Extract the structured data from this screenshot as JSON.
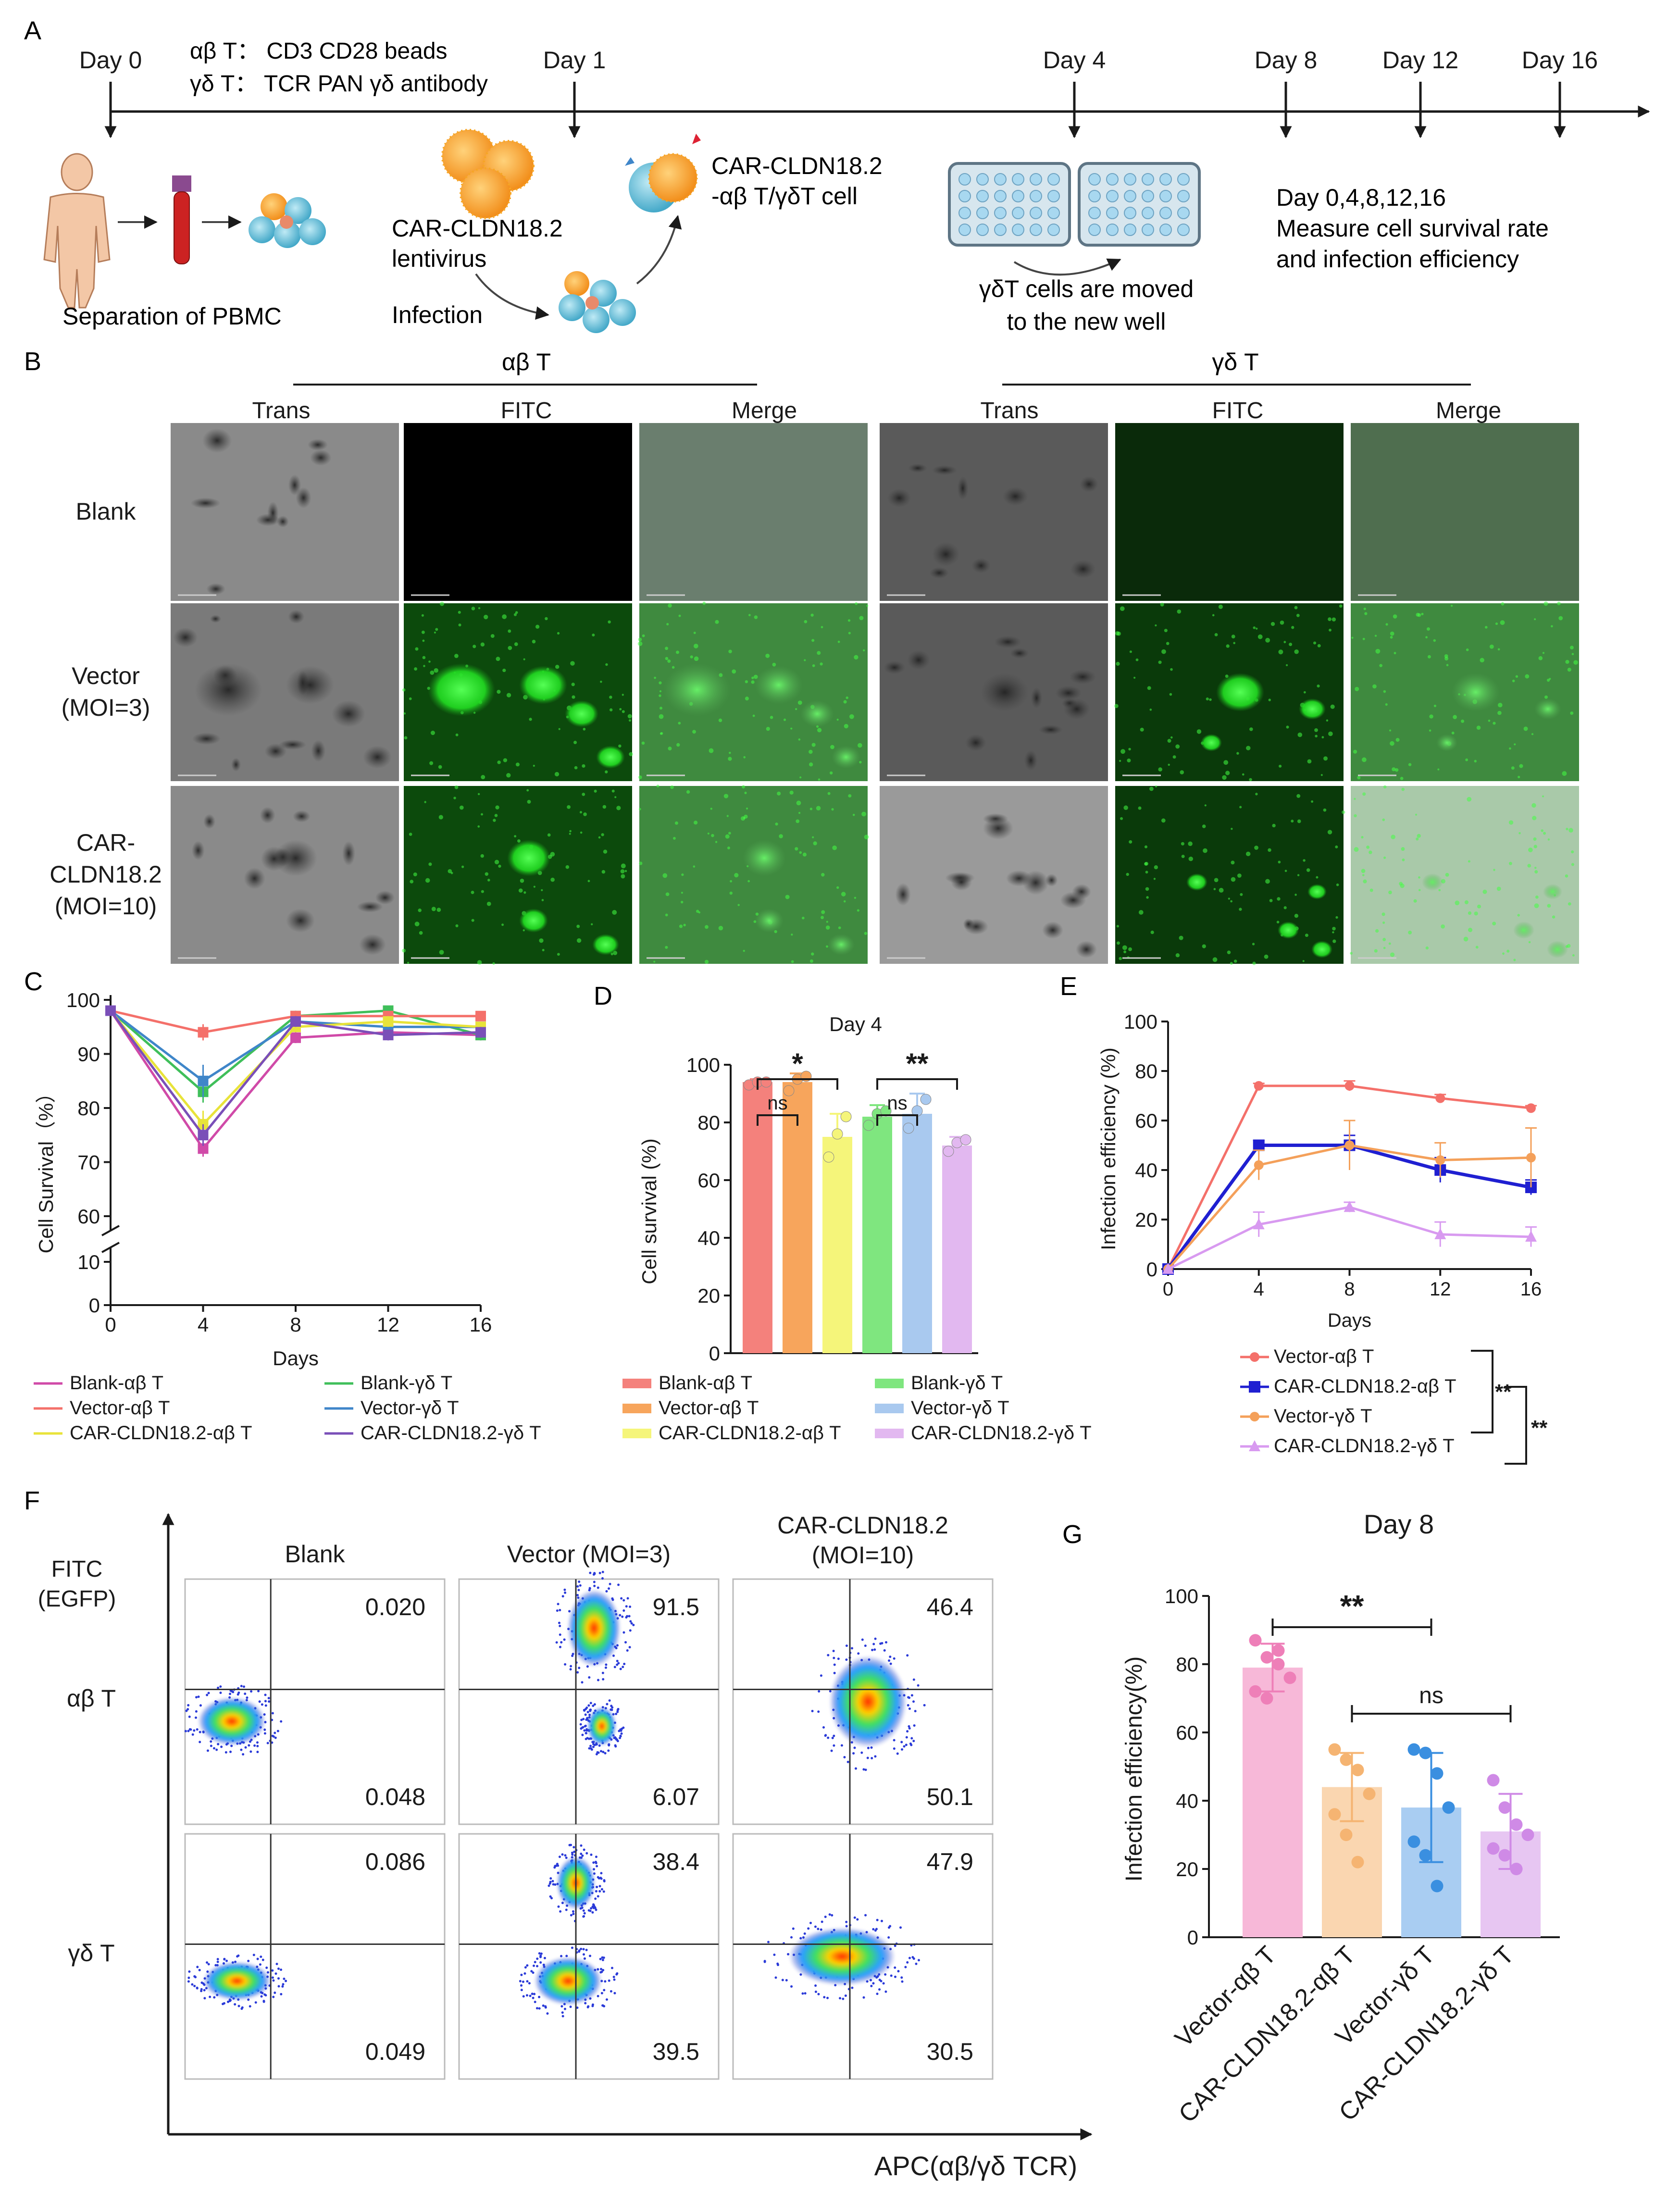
{
  "panel_labels": {
    "a": "A",
    "b": "B",
    "c": "C",
    "d": "D",
    "e": "E",
    "f": "F",
    "g": "G"
  },
  "timeline": {
    "days": [
      {
        "label": "Day 0",
        "x": 230
      },
      {
        "label": "Day 1",
        "x": 1195
      },
      {
        "label": "Day 4",
        "x": 2235
      },
      {
        "label": "Day 8",
        "x": 2675
      },
      {
        "label": "Day 12",
        "x": 2955
      },
      {
        "label": "Day 16",
        "x": 3245
      }
    ],
    "stim_ab": "αβ T：  CD3 CD28 beads",
    "stim_gd": "γδ T：  TCR PAN γδ antibody",
    "pbmc_label": "Separation of PBMC",
    "lentivirus_line1": "CAR-CLDN18.2",
    "lentivirus_line2": "lentivirus",
    "infection_label": "Infection",
    "car_cell_line1": "CAR-CLDN18.2",
    "car_cell_line2": "-αβ T/γδT cell",
    "move_line1": "γδT cells are moved",
    "move_line2": "to the new well",
    "measure_line1": "Day 0,4,8,12,16",
    "measure_line2": "Measure cell survival rate",
    "measure_line3": "and infection efficiency"
  },
  "microscopy": {
    "group_ab": "αβ T",
    "group_gd": "γδ T",
    "columns": [
      "Trans",
      "FITC",
      "Merge",
      "Trans",
      "FITC",
      "Merge"
    ],
    "rows": [
      {
        "label_lines": [
          "Blank"
        ]
      },
      {
        "label_lines": [
          "Vector",
          "(MOI=3)"
        ]
      },
      {
        "label_lines": [
          "CAR-",
          "CLDN18.2",
          "(MOI=10)"
        ]
      }
    ]
  },
  "legend_cd": [
    {
      "name": "Blank-αβ T",
      "color": "#d04aa8"
    },
    {
      "name": "Blank-γδ T",
      "color": "#3fbf5a"
    },
    {
      "name": "Vector-αβ T",
      "color": "#f4706a"
    },
    {
      "name": "Vector-γδ T",
      "color": "#3f86c9"
    },
    {
      "name": "CAR-CLDN18.2-αβ T",
      "color": "#e8e33a"
    },
    {
      "name": "CAR-CLDN18.2-γδ T",
      "color": "#7a4fb8"
    }
  ],
  "legend_d": [
    {
      "name": "Blank-αβ T",
      "color": "#f4817c"
    },
    {
      "name": "Blank-γδ T",
      "color": "#7fe67f"
    },
    {
      "name": "Vector-αβ T",
      "color": "#f7a55c"
    },
    {
      "name": "Vector-γδ T",
      "color": "#a9c9ef"
    },
    {
      "name": "CAR-CLDN18.2-αβ T",
      "color": "#f5f57a"
    },
    {
      "name": "CAR-CLDN18.2-γδ T",
      "color": "#e2b8f0"
    }
  ],
  "chart_data": [
    {
      "id": "C",
      "type": "line",
      "xlabel": "Days",
      "ylabel": "Cell Survival（%）",
      "x": [
        0,
        4,
        8,
        12,
        16
      ],
      "xticks": [
        "0",
        "4",
        "8",
        "12",
        "16"
      ],
      "yticks_upper": [
        "60",
        "70",
        "80",
        "90",
        "100"
      ],
      "yticks_lower": [
        "0",
        "10"
      ],
      "axis_break": true,
      "series": [
        {
          "name": "Blank-αβ T",
          "color": "#d04aa8",
          "values": [
            98,
            72.5,
            93,
            94,
            93.5
          ],
          "err": [
            0.5,
            1.5,
            1,
            0.8,
            0.8
          ]
        },
        {
          "name": "Blank-γδ T",
          "color": "#3fbf5a",
          "values": [
            98,
            83,
            97,
            98,
            93.5
          ],
          "err": [
            0.5,
            2,
            1,
            0.8,
            1
          ]
        },
        {
          "name": "Vector-αβ T",
          "color": "#f4706a",
          "values": [
            98,
            94,
            97,
            97,
            97
          ],
          "err": [
            0.5,
            1.5,
            0.8,
            0.8,
            0.8
          ]
        },
        {
          "name": "Vector-γδ T",
          "color": "#3f86c9",
          "values": [
            98,
            85,
            96,
            95,
            95
          ],
          "err": [
            0.5,
            3,
            1,
            1,
            1
          ]
        },
        {
          "name": "CAR-CLDN18.2-αβ T",
          "color": "#e8e33a",
          "values": [
            98,
            77,
            95,
            96,
            95
          ],
          "err": [
            0.5,
            2.5,
            1,
            1,
            1
          ]
        },
        {
          "name": "CAR-CLDN18.2-γδ T",
          "color": "#7a4fb8",
          "values": [
            98,
            75,
            96,
            93.5,
            94
          ],
          "err": [
            0.5,
            2,
            1,
            1,
            1
          ]
        }
      ]
    },
    {
      "id": "D",
      "type": "bar",
      "title": "Day 4",
      "ylabel": "Cell survival (%)",
      "ylim": [
        0,
        100
      ],
      "yticks": [
        "0",
        "20",
        "40",
        "60",
        "80",
        "100"
      ],
      "categories": [
        "Blank-αβ T",
        "Vector-αβ T",
        "CAR-CLDN18.2-αβ T",
        "Blank-γδ T",
        "Vector-γδ T",
        "CAR-CLDN18.2-γδ T"
      ],
      "values": [
        94,
        94,
        75,
        82,
        83,
        72
      ],
      "err": [
        1,
        3,
        8,
        4,
        7,
        3
      ],
      "colors": [
        "#f4817c",
        "#f7a55c",
        "#f5f57a",
        "#7fe67f",
        "#a9c9ef",
        "#e2b8f0"
      ],
      "dots": [
        [
          93,
          94,
          94
        ],
        [
          91,
          95,
          96
        ],
        [
          68,
          76,
          82
        ],
        [
          79,
          83,
          84
        ],
        [
          78,
          84,
          88
        ],
        [
          70,
          73,
          74
        ]
      ],
      "sig": [
        {
          "from": 0,
          "to": 1,
          "label": "ns",
          "level": 1
        },
        {
          "from": 0,
          "to": 2,
          "label": "*",
          "level": 2
        },
        {
          "from": 3,
          "to": 4,
          "label": "ns",
          "level": 1
        },
        {
          "from": 3,
          "to": 5,
          "label": "**",
          "level": 2
        }
      ]
    },
    {
      "id": "E",
      "type": "line",
      "xlabel": "Days",
      "ylabel": "Infection efficiency (%)",
      "x": [
        0,
        4,
        8,
        12,
        16
      ],
      "xticks": [
        "0",
        "4",
        "8",
        "12",
        "16"
      ],
      "ylim": [
        0,
        100
      ],
      "yticks": [
        "0",
        "20",
        "40",
        "60",
        "80",
        "100"
      ],
      "series": [
        {
          "name": "Vector-αβ T",
          "color": "#f4706a",
          "marker": "circle",
          "values": [
            0,
            74,
            74,
            69,
            65
          ],
          "err": [
            0,
            1,
            2,
            1.5,
            1
          ]
        },
        {
          "name": "CAR-CLDN18.2-αβ T",
          "color": "#1f1fd1",
          "marker": "square",
          "values": [
            0,
            50,
            50,
            40,
            33
          ],
          "err": [
            0,
            2,
            4,
            5,
            3
          ]
        },
        {
          "name": "Vector-γδ T",
          "color": "#f4a05a",
          "marker": "circle",
          "values": [
            0,
            42,
            50,
            44,
            45
          ],
          "err": [
            0,
            6,
            10,
            7,
            12
          ]
        },
        {
          "name": "CAR-CLDN18.2-γδ T",
          "color": "#d89af0",
          "marker": "triangle",
          "values": [
            0,
            18,
            25,
            14,
            13
          ],
          "err": [
            0,
            5,
            2,
            5,
            4
          ]
        }
      ],
      "sig": [
        "**",
        "**"
      ]
    },
    {
      "id": "F",
      "type": "scatter",
      "ylabel_line1": "FITC",
      "ylabel_line2": "(EGFP)",
      "xlabel": "APC(αβ/γδ TCR)",
      "col_labels": [
        "Blank",
        "Vector (MOI=3)",
        "CAR-CLDN18.2"
      ],
      "col_sub": [
        "",
        "",
        "(MOI=10)"
      ],
      "row_labels": [
        "αβ T",
        "γδ T"
      ],
      "quadrants": [
        [
          {
            "upper": "0.020",
            "lower": "0.048"
          },
          {
            "upper": "91.5",
            "lower": "6.07"
          },
          {
            "upper": "46.4",
            "lower": "50.1"
          }
        ],
        [
          {
            "upper": "0.086",
            "lower": "0.049"
          },
          {
            "upper": "38.4",
            "lower": "39.5"
          },
          {
            "upper": "47.9",
            "lower": "30.5"
          }
        ]
      ]
    },
    {
      "id": "G",
      "type": "bar",
      "title": "Day 8",
      "ylabel": "Infection efficiency(%)",
      "ylim": [
        0,
        100
      ],
      "yticks": [
        "0",
        "20",
        "40",
        "60",
        "80",
        "100"
      ],
      "categories": [
        "Vector-αβ T",
        "CAR-CLDN18.2-αβ T",
        "Vector-γδ T",
        "CAR-CLDN18.2-γδ T"
      ],
      "values": [
        79,
        44,
        38,
        31
      ],
      "err": [
        7,
        10,
        16,
        11
      ],
      "colors": [
        "#f7b8d8",
        "#fad6b0",
        "#a9cdf2",
        "#e7c6f2"
      ],
      "dotcolors": [
        "#ee7fb8",
        "#f5b472",
        "#3a8fe0",
        "#cf8ae6"
      ],
      "dots": [
        [
          87,
          82,
          80,
          76,
          72,
          70,
          84
        ],
        [
          55,
          52,
          49,
          42,
          36,
          30,
          22
        ],
        [
          55,
          54,
          48,
          38,
          28,
          24,
          15
        ],
        [
          46,
          38,
          33,
          30,
          26,
          24,
          20
        ]
      ],
      "sig": [
        {
          "from": 0,
          "to": 2,
          "label": "**",
          "level": 2
        },
        {
          "from": 1,
          "to": 3,
          "label": "ns",
          "level": 1
        }
      ]
    }
  ]
}
